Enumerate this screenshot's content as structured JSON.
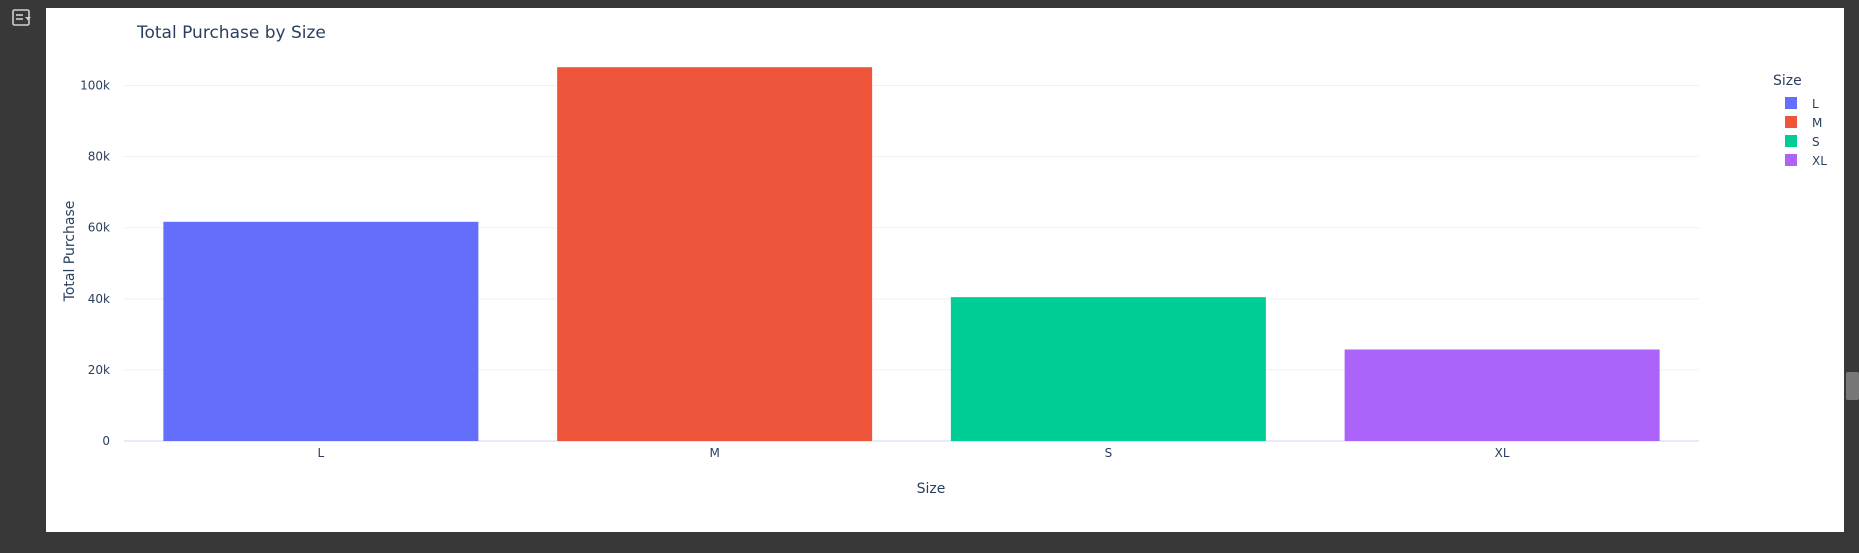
{
  "toolbar": {
    "toggle_icon": "output-settings-icon"
  },
  "chart_data": {
    "type": "bar",
    "title": "Total Purchase by Size",
    "xlabel": "Size",
    "ylabel": "Total Purchase",
    "categories": [
      "L",
      "M",
      "S",
      "XL"
    ],
    "values": [
      61667,
      105167,
      40468,
      25742
    ],
    "colors": [
      "#636efa",
      "#ef553b",
      "#00cc96",
      "#ab63fa"
    ],
    "ylim": [
      0,
      110000
    ],
    "yticks": [
      0,
      20000,
      40000,
      60000,
      80000,
      100000
    ],
    "ytick_labels": [
      "0",
      "20k",
      "40k",
      "60k",
      "80k",
      "100k"
    ],
    "grid": true,
    "legend": {
      "title": "Size",
      "position": "top-right",
      "items": [
        "L",
        "M",
        "S",
        "XL"
      ]
    }
  }
}
